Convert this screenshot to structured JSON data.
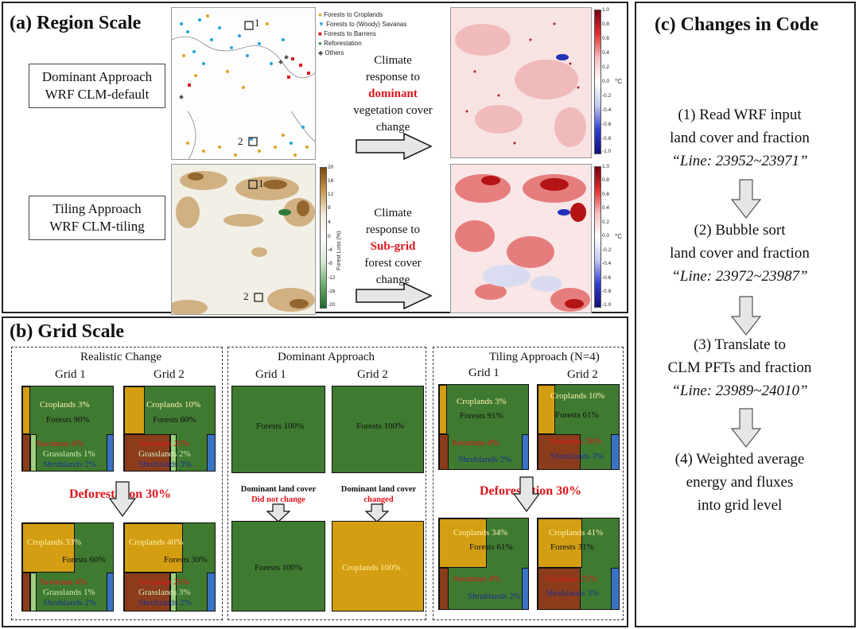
{
  "panel_a": {
    "title": "(a) Region Scale",
    "dominant_label": [
      "Dominant Approach",
      "WRF CLM-default"
    ],
    "tiling_label": [
      "Tiling Approach",
      "WRF CLM-tiling"
    ],
    "arrow1": [
      "Climate",
      "response to",
      "dominant",
      "vegetation cover",
      "change"
    ],
    "arrow2": [
      "Climate",
      "response to",
      "Sub-grid",
      "forest cover",
      "change"
    ],
    "region_markers": [
      "1",
      "2"
    ],
    "legend": [
      {
        "label": "Forests to Croplands",
        "color": "#e0a020",
        "symbol": "●"
      },
      {
        "label": "Forests to (Woody) Savanas",
        "color": "#22a6d6",
        "symbol": "▼"
      },
      {
        "label": "Forests to Barrens",
        "color": "#d81d24",
        "symbol": "■"
      },
      {
        "label": "Reforestation",
        "color": "#2f8f3f",
        "symbol": "●"
      },
      {
        "label": "Others",
        "color": "#555555",
        "symbol": "◆"
      }
    ],
    "forest_loss_cbar": {
      "label": "Forest Loss (%)",
      "ticks": [
        "20",
        "16",
        "12",
        "8",
        "4",
        "0",
        "-4",
        "-8",
        "-12",
        "-16",
        "-20"
      ]
    },
    "temp_cbar": {
      "unit": "°C",
      "ticks": [
        "1.0",
        "0.8",
        "0.6",
        "0.4",
        "0.2",
        "0.0",
        "-0.2",
        "-0.4",
        "-0.6",
        "-0.8",
        "-1.0"
      ]
    }
  },
  "panel_b": {
    "title": "(b) Grid Scale",
    "realistic": {
      "title": "Realistic Change",
      "grid1_label": "Grid 1",
      "grid2_label": "Grid 2",
      "before_g1": {
        "croplands": "Croplands 3%",
        "forests": "Forests 90%",
        "savannas": "Savannas 4%",
        "grasslands": "Grasslands 1%",
        "shrublands": "Shrublands 2%"
      },
      "before_g2": {
        "croplands": "Croplands 10%",
        "forests": "Forests 60%",
        "savannas": "Savannas 25%",
        "grasslands": "Grasslands 2%",
        "shrublands": "Shrublands 3%"
      },
      "deforestation": "Deforestation 30%",
      "after_g1": {
        "croplands": "Croplands 33%",
        "forests": "Forests 60%",
        "savannas": "Savannas 4%",
        "grasslands": "Grasslands 1%",
        "shrublands": "Shrublands 2%"
      },
      "after_g2": {
        "croplands": "Croplands 40%",
        "forests": "Forests 30%",
        "savannas": "Savannas 25%",
        "grasslands": "Grasslands 3%",
        "shrublands": "Shrublands 2%"
      }
    },
    "dominant": {
      "title": "Dominant Approach",
      "grid1_label": "Grid 1",
      "grid2_label": "Grid 2",
      "before_g1": "Forests 100%",
      "before_g2": "Forests 100%",
      "note_g1": [
        "Dominant land cover",
        "Did not change"
      ],
      "note_g2": [
        "Dominant land cover",
        "changed"
      ],
      "after_g1": "Forests 100%",
      "after_g2": "Croplands 100%"
    },
    "tiling": {
      "title": "Tiling Approach (N=4)",
      "grid1_label": "Grid 1",
      "grid2_label": "Grid 2",
      "before_g1": {
        "croplands": "Croplands 3%",
        "forests": "Forests 91%",
        "savannas": "Savannas 4%",
        "shrublands": "Shrublands 2%"
      },
      "before_g2": {
        "croplands": "Croplands 10%",
        "forests": "Forests 61%",
        "savannas": "Savannas 26%",
        "shrublands": "Shrublands 3%"
      },
      "deforestation": "Deforestation 30%",
      "after_g1": {
        "croplands": "Croplands 34%",
        "forests": "Forests 61%",
        "savannas": "Savannas 4%",
        "shrublands": "Shrublands 2%"
      },
      "after_g2": {
        "croplands": "Croplands 41%",
        "forests": "Forests 31%",
        "savannas": "Savannas 25%",
        "shrublands": "Shrublands 3%"
      }
    }
  },
  "panel_c": {
    "title": "(c) Changes in Code",
    "steps": [
      {
        "line1": "(1) Read WRF input",
        "line2": "land cover and fraction",
        "line3": "“Line: 23952~23971”"
      },
      {
        "line1": "(2) Bubble sort",
        "line2": "land cover and fraction",
        "line3": "“Line: 23972~23987”"
      },
      {
        "line1": "(3) Translate to",
        "line2": "CLM PFTs and fraction",
        "line3": "“Line: 23989~24010”"
      },
      {
        "line1": "(4) Weighted average",
        "line2": "energy and fluxes",
        "line3": "into grid level"
      }
    ]
  },
  "colors": {
    "forest": "#3f7a31",
    "cropland": "#d39e12",
    "savanna": "#8b3d1b",
    "grassland": "#9cd17d",
    "shrubland": "#3b73c4",
    "accent_red": "#e0141b"
  }
}
